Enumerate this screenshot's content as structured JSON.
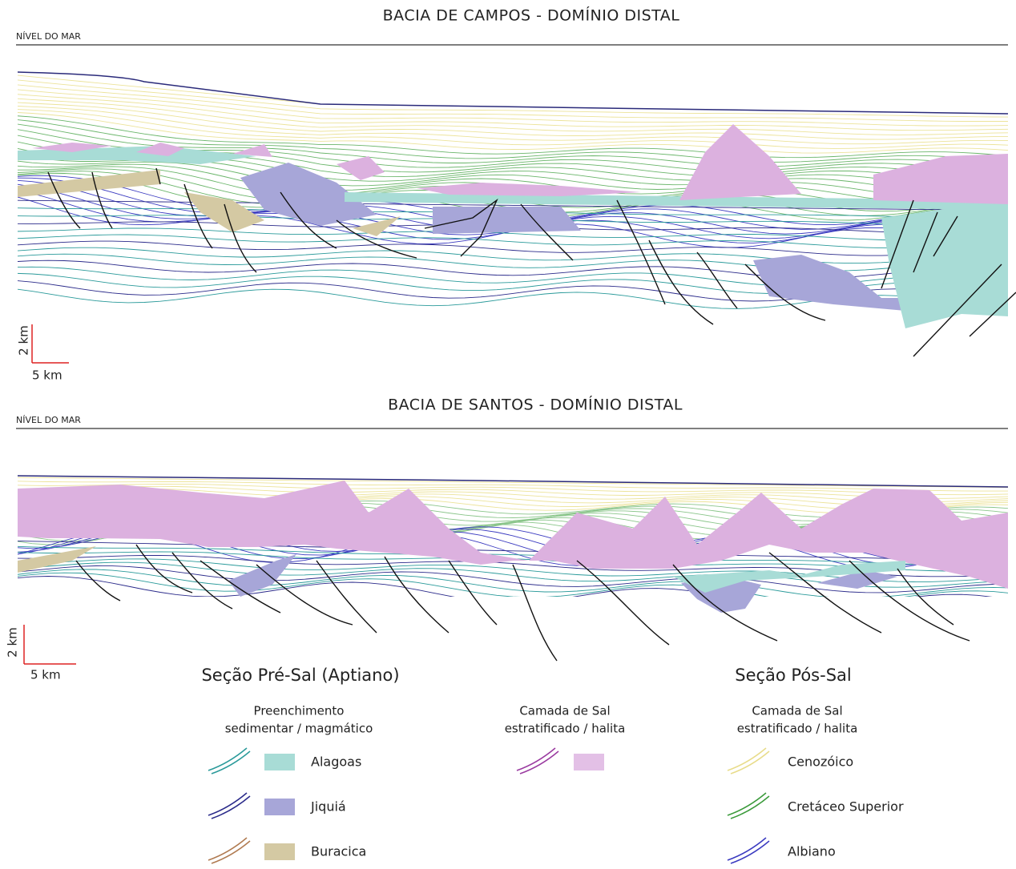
{
  "panels": [
    {
      "title": "BACIA DE CAMPOS - DOMÍNIO DISTAL",
      "sea_level": "NÍVEL DO MAR",
      "scale_vertical": "2 km",
      "scale_horizontal": "5 km"
    },
    {
      "title": "BACIA DE SANTOS - DOMÍNIO DISTAL",
      "sea_level": "NÍVEL DO MAR",
      "scale_vertical": "2 km",
      "scale_horizontal": "5 km"
    }
  ],
  "legend": {
    "pre_sal": {
      "title": "Seção Pré-Sal (Aptiano)",
      "fill_group": {
        "heading": [
          "Preenchimento",
          "sedimentar / magmático"
        ],
        "items": [
          "Alagoas",
          "Jiquiá",
          "Buracica"
        ]
      },
      "salt_group": {
        "heading": [
          "Camada de Sal",
          "estratificado / halita"
        ]
      }
    },
    "pos_sal": {
      "title": "Seção Pós-Sal",
      "group": {
        "heading": [
          "Camada de Sal",
          "estratificado / halita"
        ],
        "items": [
          "Cenozóico",
          "Cretáceo Superior",
          "Albiano"
        ]
      }
    }
  }
}
